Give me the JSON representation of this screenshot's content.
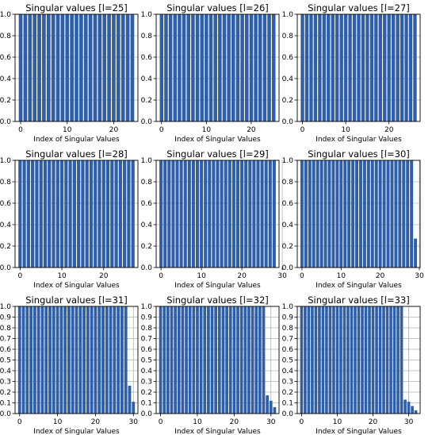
{
  "chart_data": [
    {
      "type": "bar",
      "title": "Singular values [l=25]",
      "xlabel": "Index of Singular Values",
      "ylabel": "",
      "x": [
        0,
        1,
        2,
        3,
        4,
        5,
        6,
        7,
        8,
        9,
        10,
        11,
        12,
        13,
        14,
        15,
        16,
        17,
        18,
        19,
        20,
        21,
        22,
        23,
        24
      ],
      "values": [
        1,
        1,
        1,
        1,
        1,
        1,
        1,
        1,
        1,
        1,
        1,
        1,
        1,
        1,
        1,
        1,
        1,
        1,
        1,
        1,
        1,
        1,
        1,
        1,
        1
      ],
      "xticks": [
        0,
        10,
        20
      ],
      "yticks": [
        0.0,
        0.2,
        0.4,
        0.6,
        0.8,
        1.0
      ],
      "ylim": [
        0,
        1
      ],
      "grid": true,
      "color": "#2e5fa8"
    },
    {
      "type": "bar",
      "title": "Singular values [l=26]",
      "xlabel": "Index of Singular Values",
      "ylabel": "",
      "x": [
        0,
        1,
        2,
        3,
        4,
        5,
        6,
        7,
        8,
        9,
        10,
        11,
        12,
        13,
        14,
        15,
        16,
        17,
        18,
        19,
        20,
        21,
        22,
        23,
        24,
        25
      ],
      "values": [
        1,
        1,
        1,
        1,
        1,
        1,
        1,
        1,
        1,
        1,
        1,
        1,
        1,
        1,
        1,
        1,
        1,
        1,
        1,
        1,
        1,
        1,
        1,
        1,
        1,
        1
      ],
      "xticks": [
        0,
        10,
        20
      ],
      "yticks": [
        0.0,
        0.2,
        0.4,
        0.6,
        0.8,
        1.0
      ],
      "ylim": [
        0,
        1
      ],
      "grid": true,
      "color": "#2e5fa8"
    },
    {
      "type": "bar",
      "title": "Singular values [l=27]",
      "xlabel": "Index of Singular Values",
      "ylabel": "",
      "x": [
        0,
        1,
        2,
        3,
        4,
        5,
        6,
        7,
        8,
        9,
        10,
        11,
        12,
        13,
        14,
        15,
        16,
        17,
        18,
        19,
        20,
        21,
        22,
        23,
        24,
        25,
        26
      ],
      "values": [
        1,
        1,
        1,
        1,
        1,
        1,
        1,
        1,
        1,
        1,
        1,
        1,
        1,
        1,
        1,
        1,
        1,
        1,
        1,
        1,
        1,
        1,
        1,
        1,
        1,
        1,
        1
      ],
      "xticks": [
        0,
        10,
        20
      ],
      "yticks": [
        0.0,
        0.2,
        0.4,
        0.6,
        0.8,
        1.0
      ],
      "ylim": [
        0,
        1
      ],
      "grid": true,
      "color": "#2e5fa8"
    },
    {
      "type": "bar",
      "title": "Singular values [l=28]",
      "xlabel": "Index of Singular Values",
      "ylabel": "",
      "x": [
        0,
        1,
        2,
        3,
        4,
        5,
        6,
        7,
        8,
        9,
        10,
        11,
        12,
        13,
        14,
        15,
        16,
        17,
        18,
        19,
        20,
        21,
        22,
        23,
        24,
        25,
        26,
        27
      ],
      "values": [
        1,
        1,
        1,
        1,
        1,
        1,
        1,
        1,
        1,
        1,
        1,
        1,
        1,
        1,
        1,
        1,
        1,
        1,
        1,
        1,
        1,
        1,
        1,
        1,
        1,
        1,
        1,
        1
      ],
      "xticks": [
        0,
        10,
        20
      ],
      "yticks": [
        0.0,
        0.2,
        0.4,
        0.6,
        0.8,
        1.0
      ],
      "ylim": [
        0,
        1
      ],
      "grid": true,
      "color": "#2e5fa8"
    },
    {
      "type": "bar",
      "title": "Singular values [l=29]",
      "xlabel": "Index of Singular Values",
      "ylabel": "",
      "x": [
        0,
        1,
        2,
        3,
        4,
        5,
        6,
        7,
        8,
        9,
        10,
        11,
        12,
        13,
        14,
        15,
        16,
        17,
        18,
        19,
        20,
        21,
        22,
        23,
        24,
        25,
        26,
        27,
        28
      ],
      "values": [
        1,
        1,
        1,
        1,
        1,
        1,
        1,
        1,
        1,
        1,
        1,
        1,
        1,
        1,
        1,
        1,
        1,
        1,
        1,
        1,
        1,
        1,
        1,
        1,
        1,
        1,
        1,
        1,
        1
      ],
      "xticks": [
        0,
        10,
        20,
        30
      ],
      "yticks": [
        0.0,
        0.2,
        0.4,
        0.6,
        0.8,
        1.0
      ],
      "ylim": [
        0,
        1
      ],
      "grid": true,
      "color": "#2e5fa8"
    },
    {
      "type": "bar",
      "title": "Singular values [l=30]",
      "xlabel": "Index of Singular Values",
      "ylabel": "",
      "x": [
        0,
        1,
        2,
        3,
        4,
        5,
        6,
        7,
        8,
        9,
        10,
        11,
        12,
        13,
        14,
        15,
        16,
        17,
        18,
        19,
        20,
        21,
        22,
        23,
        24,
        25,
        26,
        27,
        28,
        29
      ],
      "values": [
        1,
        1,
        1,
        1,
        1,
        1,
        1,
        1,
        1,
        1,
        1,
        1,
        1,
        1,
        1,
        1,
        1,
        1,
        1,
        1,
        1,
        1,
        1,
        1,
        1,
        1,
        1,
        1,
        1,
        0.27
      ],
      "xticks": [
        0,
        10,
        20,
        30
      ],
      "yticks": [
        0.0,
        0.2,
        0.4,
        0.6,
        0.8,
        1.0
      ],
      "ylim": [
        0,
        1
      ],
      "grid": true,
      "color": "#2e5fa8"
    },
    {
      "type": "bar",
      "title": "Singular values [l=31]",
      "xlabel": "Index of Singular Values",
      "ylabel": "",
      "x": [
        0,
        1,
        2,
        3,
        4,
        5,
        6,
        7,
        8,
        9,
        10,
        11,
        12,
        13,
        14,
        15,
        16,
        17,
        18,
        19,
        20,
        21,
        22,
        23,
        24,
        25,
        26,
        27,
        28,
        29,
        30
      ],
      "values": [
        1,
        1,
        1,
        1,
        1,
        1,
        1,
        1,
        1,
        1,
        1,
        1,
        1,
        1,
        1,
        1,
        1,
        1,
        1,
        1,
        1,
        1,
        1,
        1,
        1,
        1,
        1,
        1,
        1,
        0.26,
        0.11
      ],
      "xticks": [
        0,
        10,
        20,
        30
      ],
      "yticks": [
        0.0,
        0.1,
        0.2,
        0.3,
        0.4,
        0.5,
        0.6,
        0.7,
        0.8,
        0.9,
        1.0
      ],
      "ylim": [
        0,
        1
      ],
      "grid": true,
      "color": "#2e5fa8"
    },
    {
      "type": "bar",
      "title": "Singular values [l=32]",
      "xlabel": "Index of Singular Values",
      "ylabel": "",
      "x": [
        0,
        1,
        2,
        3,
        4,
        5,
        6,
        7,
        8,
        9,
        10,
        11,
        12,
        13,
        14,
        15,
        16,
        17,
        18,
        19,
        20,
        21,
        22,
        23,
        24,
        25,
        26,
        27,
        28,
        29,
        30,
        31
      ],
      "values": [
        1,
        1,
        1,
        1,
        1,
        1,
        1,
        1,
        1,
        1,
        1,
        1,
        1,
        1,
        1,
        1,
        1,
        1,
        1,
        1,
        1,
        1,
        1,
        1,
        1,
        1,
        1,
        1,
        1,
        0.17,
        0.12,
        0.06
      ],
      "xticks": [
        0,
        10,
        20,
        30
      ],
      "yticks": [
        0.0,
        0.1,
        0.2,
        0.3,
        0.4,
        0.5,
        0.6,
        0.7,
        0.8,
        0.9,
        1.0
      ],
      "ylim": [
        0,
        1
      ],
      "grid": true,
      "color": "#2e5fa8"
    },
    {
      "type": "bar",
      "title": "Singular values [l=33]",
      "xlabel": "Index of Singular Values",
      "ylabel": "",
      "x": [
        0,
        1,
        2,
        3,
        4,
        5,
        6,
        7,
        8,
        9,
        10,
        11,
        12,
        13,
        14,
        15,
        16,
        17,
        18,
        19,
        20,
        21,
        22,
        23,
        24,
        25,
        26,
        27,
        28,
        29,
        30,
        31,
        32
      ],
      "values": [
        1,
        1,
        1,
        1,
        1,
        1,
        1,
        1,
        1,
        1,
        1,
        1,
        1,
        1,
        1,
        1,
        1,
        1,
        1,
        1,
        1,
        1,
        1,
        1,
        1,
        1,
        1,
        1,
        1,
        0.13,
        0.11,
        0.07,
        0.03
      ],
      "xticks": [
        0,
        10,
        20,
        30
      ],
      "yticks": [
        0.0,
        0.1,
        0.2,
        0.3,
        0.4,
        0.5,
        0.6,
        0.7,
        0.8,
        0.9,
        1.0
      ],
      "ylim": [
        0,
        1
      ],
      "grid": true,
      "color": "#2e5fa8"
    }
  ]
}
